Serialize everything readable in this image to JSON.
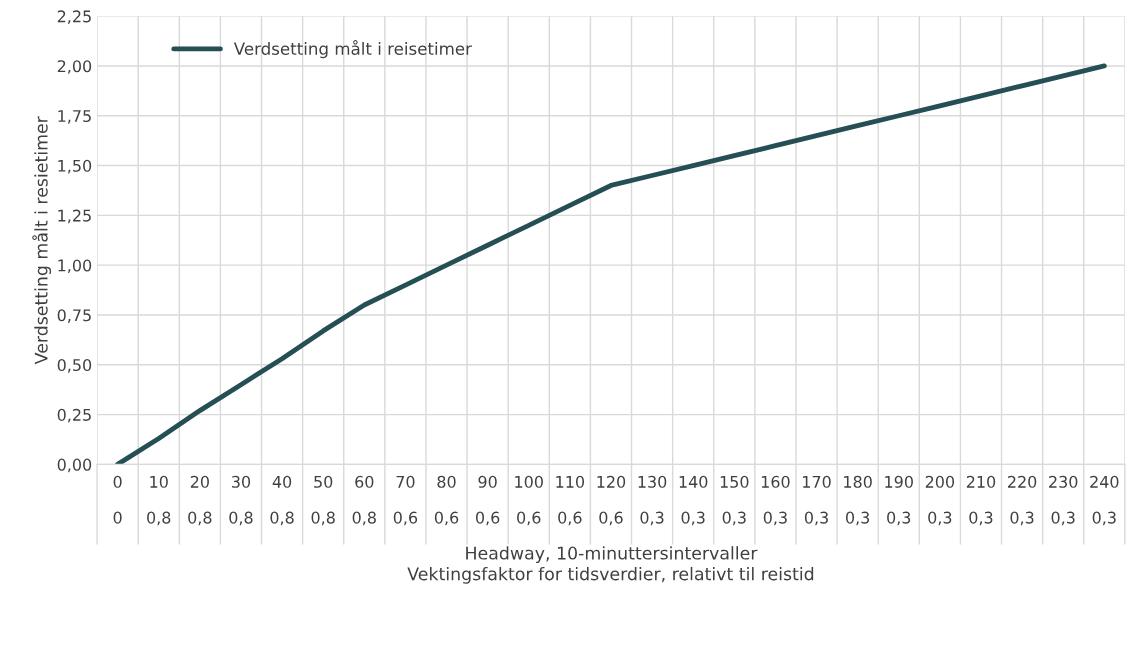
{
  "chart_data": {
    "type": "line",
    "ylabel": "Verdsetting målt i resietimer",
    "xlabel": "Headway, 10-minuttersintervaller\nVektingsfaktor for tidsverdier, relativt til reistid",
    "categories": [
      "0\n\n0",
      "10\n\n0,8",
      "20\n\n0,8",
      "30\n\n0,8",
      "40\n\n0,8",
      "50\n\n0,8",
      "60\n\n0,8",
      "70\n\n0,6",
      "80\n\n0,6",
      "90\n\n0,6",
      "100\n\n0,6",
      "110\n\n0,6",
      "120\n\n0,6",
      "130\n\n0,3",
      "140\n\n0,3",
      "150\n\n0,3",
      "160\n\n0,3",
      "170\n\n0,3",
      "180\n\n0,3",
      "190\n\n0,3",
      "200\n\n0,3",
      "210\n\n0,3",
      "220\n\n0,3",
      "230\n\n0,3",
      "240\n\n0,3"
    ],
    "series": [
      {
        "name": "Verdsetting målt i reisetimer",
        "color": "#264f55",
        "values": [
          0,
          0.13,
          0.27,
          0.4,
          0.53,
          0.67,
          0.8,
          0.9,
          1.0,
          1.1,
          1.2,
          1.3,
          1.4,
          1.45,
          1.5,
          1.55,
          1.6,
          1.65,
          1.7,
          1.75,
          1.8,
          1.85,
          1.9,
          1.95,
          2.0
        ]
      }
    ],
    "ylim": [
      0,
      2.25
    ],
    "yticks": [
      {
        "value": 0,
        "label": "0,00"
      },
      {
        "value": 0.25,
        "label": "0,25"
      },
      {
        "value": 0.5,
        "label": "0,50"
      },
      {
        "value": 0.75,
        "label": "0,75"
      },
      {
        "value": 1.0,
        "label": "1,00"
      },
      {
        "value": 1.25,
        "label": "1,25"
      },
      {
        "value": 1.5,
        "label": "1,50"
      },
      {
        "value": 1.75,
        "label": "1,75"
      },
      {
        "value": 2.0,
        "label": "2,00"
      },
      {
        "value": 2.25,
        "label": "2,25"
      }
    ],
    "grid": true,
    "legend": "top left",
    "marker": "none",
    "line_style": "solid"
  }
}
